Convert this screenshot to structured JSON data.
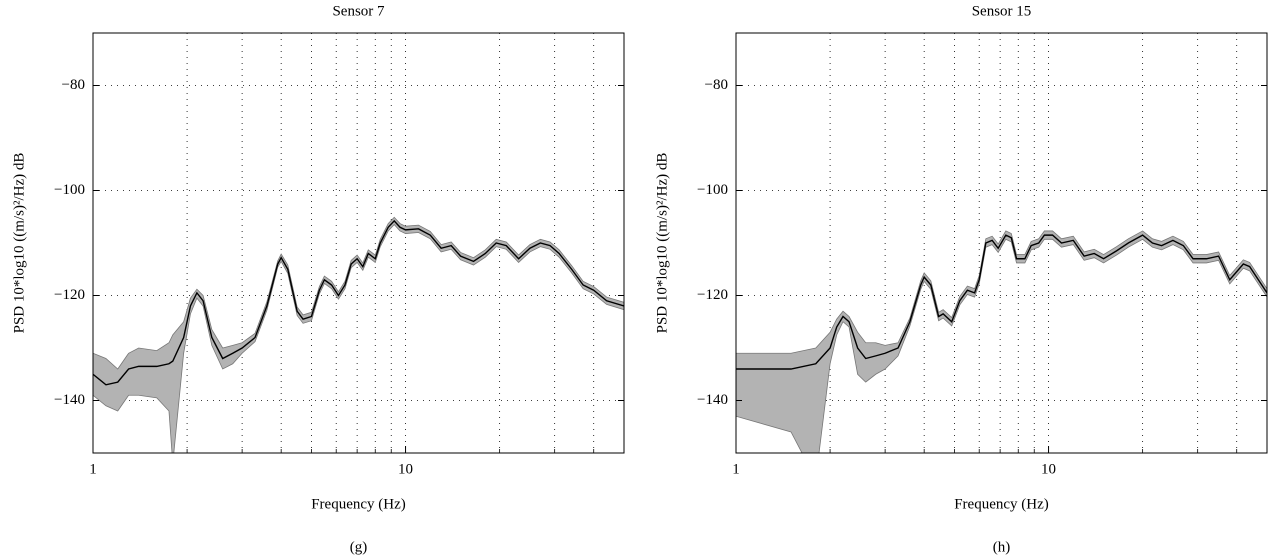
{
  "chart_data": [
    {
      "type": "line",
      "title": "Sensor 7",
      "caption": "(g)",
      "xlabel": "Frequency (Hz)",
      "ylabel": "PSD 10*log10 ((m/s)²/Hz) dB",
      "xscale": "log",
      "xlim": [
        1,
        50
      ],
      "ylim": [
        -150,
        -70
      ],
      "xticks": [
        1,
        10
      ],
      "minor_xticks": [
        2,
        3,
        4,
        5,
        6,
        7,
        8,
        9,
        20,
        30,
        40,
        50
      ],
      "yticks": [
        {
          "value": -140,
          "label": "−140"
        },
        {
          "value": -120,
          "label": "−120"
        },
        {
          "value": -100,
          "label": "−100"
        },
        {
          "value": -80,
          "label": "−80"
        }
      ],
      "grid": true,
      "x": [
        1,
        1.1,
        1.2,
        1.3,
        1.4,
        1.6,
        1.75,
        1.8,
        1.95,
        2.05,
        2.15,
        2.25,
        2.4,
        2.6,
        2.8,
        3,
        3.3,
        3.6,
        3.9,
        4,
        4.2,
        4.5,
        4.7,
        5,
        5.3,
        5.5,
        5.8,
        6.1,
        6.4,
        6.7,
        7,
        7.3,
        7.6,
        8,
        8.3,
        8.8,
        9.2,
        9.6,
        10,
        11,
        12,
        13,
        14,
        15,
        16.5,
        18,
        19.5,
        21,
        23,
        25,
        27,
        29,
        31,
        34,
        37,
        40,
        44,
        50
      ],
      "band": {
        "color": "#b3b3b3",
        "lower": [
          -139,
          -141,
          -142,
          -139,
          -139,
          -139.5,
          -142,
          -152,
          -131,
          -123.5,
          -120.5,
          -122,
          -129.5,
          -134,
          -133,
          -131,
          -128.8,
          -122.8,
          -114.6,
          -113.5,
          -115.8,
          -123.8,
          -125.3,
          -124.8,
          -119.7,
          -117.7,
          -118.7,
          -120.7,
          -118.7,
          -114.7,
          -113.7,
          -115.2,
          -112.7,
          -113.7,
          -110.7,
          -107.7,
          -106.5,
          -107.7,
          -108.2,
          -108,
          -109.2,
          -111.7,
          -111.2,
          -113.2,
          -114.2,
          -112.7,
          -110.7,
          -111.2,
          -113.7,
          -111.7,
          -110.7,
          -111.2,
          -112.7,
          -115.7,
          -118.7,
          -119.7,
          -121.7,
          -122.7
        ],
        "upper": [
          -131,
          -132,
          -134,
          -131,
          -130,
          -130.5,
          -129,
          -127.5,
          -125,
          -120.5,
          -118.8,
          -120,
          -126.5,
          -130,
          -129.5,
          -129,
          -127.2,
          -121.2,
          -113.4,
          -112.1,
          -114.2,
          -122.2,
          -123.7,
          -123.2,
          -118.3,
          -116.3,
          -117.3,
          -119.3,
          -117.3,
          -113.3,
          -112.3,
          -113.8,
          -111.3,
          -112.3,
          -109.3,
          -106.3,
          -105.1,
          -106.3,
          -106.8,
          -106.6,
          -107.8,
          -110.3,
          -109.8,
          -111.8,
          -112.8,
          -111.3,
          -109.3,
          -109.8,
          -112.3,
          -110.3,
          -109.3,
          -109.8,
          -111.3,
          -114.3,
          -117.3,
          -118.3,
          -120.3,
          -121.3
        ]
      },
      "series": [
        {
          "color": "#000000",
          "values": [
            -135,
            -137,
            -136.5,
            -134,
            -133.5,
            -133.5,
            -133,
            -132.5,
            -128,
            -122,
            -119.5,
            -121,
            -128,
            -132,
            -131,
            -130,
            -128,
            -122,
            -114,
            -112.8,
            -115,
            -123,
            -124.5,
            -124,
            -119,
            -117,
            -118,
            -120,
            -118,
            -114,
            -113,
            -114.5,
            -112,
            -113,
            -110,
            -107,
            -105.8,
            -107,
            -107.5,
            -107.3,
            -108.5,
            -111,
            -110.5,
            -112.5,
            -113.5,
            -112,
            -110,
            -110.5,
            -113,
            -111,
            -110,
            -110.5,
            -112,
            -115,
            -118,
            -119,
            -121,
            -122
          ]
        }
      ]
    },
    {
      "type": "line",
      "title": "Sensor 15",
      "caption": "(h)",
      "xlabel": "Frequency (Hz)",
      "ylabel": "PSD 10*log10 ((m/s)²/Hz) dB",
      "xscale": "log",
      "xlim": [
        1,
        50
      ],
      "ylim": [
        -150,
        -70
      ],
      "xticks": [
        1,
        10
      ],
      "minor_xticks": [
        2,
        3,
        4,
        5,
        6,
        7,
        8,
        9,
        20,
        30,
        40,
        50
      ],
      "yticks": [
        {
          "value": -140,
          "label": "−140"
        },
        {
          "value": -120,
          "label": "−120"
        },
        {
          "value": -100,
          "label": "−100"
        },
        {
          "value": -80,
          "label": "−80"
        }
      ],
      "grid": true,
      "x": [
        1,
        1.5,
        1.8,
        2,
        2.1,
        2.2,
        2.3,
        2.45,
        2.6,
        2.8,
        3,
        3.3,
        3.6,
        3.9,
        4,
        4.2,
        4.45,
        4.6,
        4.9,
        5.2,
        5.5,
        5.8,
        6,
        6.3,
        6.6,
        6.9,
        7.3,
        7.6,
        7.9,
        8.4,
        8.8,
        9.3,
        9.7,
        10.3,
        11,
        12,
        13,
        14,
        15,
        16.5,
        18,
        20,
        21.5,
        23,
        25,
        27,
        29,
        32,
        35,
        38,
        42,
        44,
        50
      ],
      "band": {
        "color": "#b3b3b3",
        "lower": [
          -143,
          -146,
          -155,
          -133,
          -127.5,
          -125,
          -126,
          -135,
          -136.5,
          -135,
          -134,
          -131.5,
          -125.8,
          -118.8,
          -117.3,
          -118.8,
          -124.8,
          -124.3,
          -125.8,
          -121.8,
          -119.8,
          -120.3,
          -117.8,
          -110.8,
          -110.3,
          -111.8,
          -109.3,
          -109.8,
          -113.8,
          -113.8,
          -111.3,
          -110.8,
          -109.3,
          -109.3,
          -110.8,
          -110.3,
          -113.3,
          -112.8,
          -113.8,
          -112.3,
          -110.8,
          -109.3,
          -110.8,
          -111.3,
          -110.3,
          -111.3,
          -113.8,
          -113.8,
          -113.3,
          -117.8,
          -114.8,
          -115.3,
          -120.3
        ],
        "upper": [
          -131,
          -131,
          -130,
          -127,
          -124.5,
          -123,
          -124,
          -127,
          -129,
          -129,
          -129.5,
          -129,
          -124.3,
          -117.2,
          -115.7,
          -117.2,
          -123.2,
          -122.7,
          -124.2,
          -120.2,
          -118.2,
          -118.7,
          -116.2,
          -109.2,
          -108.7,
          -110.2,
          -107.7,
          -108.2,
          -112.2,
          -112.2,
          -109.7,
          -109.2,
          -107.7,
          -107.7,
          -109.2,
          -108.7,
          -111.7,
          -111.2,
          -112.2,
          -110.7,
          -109.2,
          -107.7,
          -109.2,
          -109.7,
          -108.7,
          -109.7,
          -112.2,
          -112.2,
          -111.7,
          -116.2,
          -113.2,
          -113.7,
          -118.7
        ]
      },
      "series": [
        {
          "color": "#000000",
          "values": [
            -134,
            -134,
            -133,
            -130,
            -126,
            -124,
            -125,
            -130,
            -132,
            -131.5,
            -131,
            -130,
            -125,
            -118,
            -116.5,
            -118,
            -124,
            -123.5,
            -125,
            -121,
            -119,
            -119.5,
            -117,
            -110,
            -109.5,
            -111,
            -108.5,
            -109,
            -113,
            -113,
            -110.5,
            -110,
            -108.5,
            -108.5,
            -110,
            -109.5,
            -112.5,
            -112,
            -113,
            -111.5,
            -110,
            -108.5,
            -110,
            -110.5,
            -109.5,
            -110.5,
            -113,
            -113,
            -112.5,
            -117,
            -114,
            -114.5,
            -119.5
          ]
        }
      ]
    }
  ]
}
